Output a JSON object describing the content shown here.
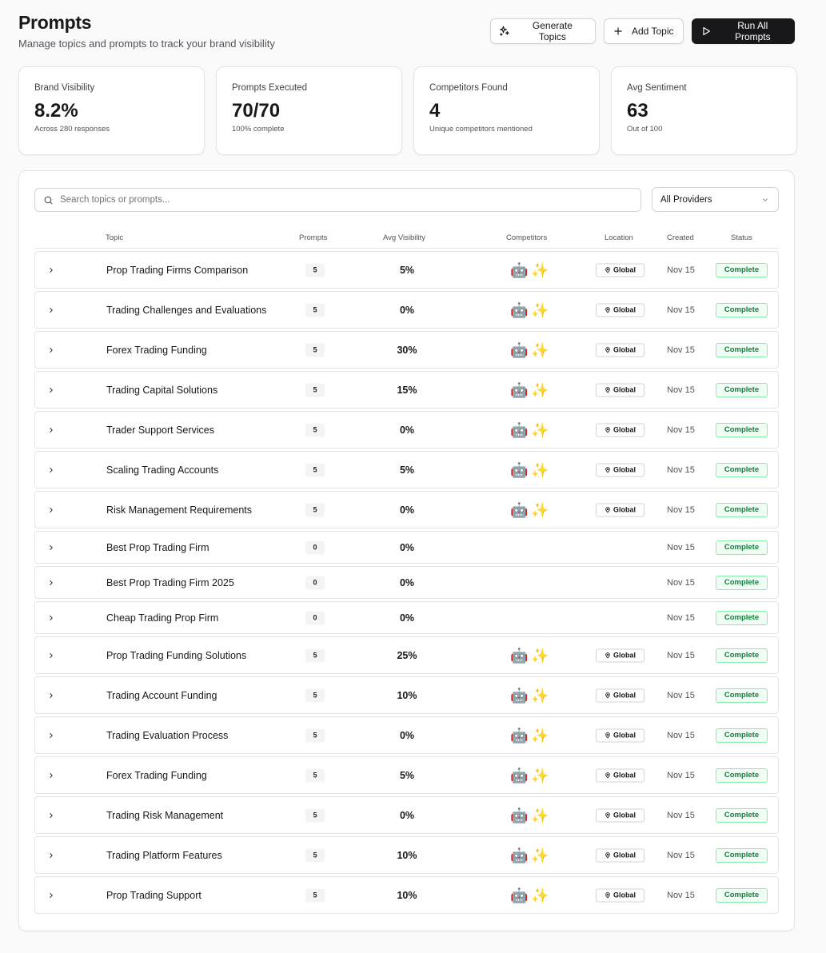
{
  "header": {
    "title": "Prompts",
    "subtitle": "Manage topics and prompts to track your brand visibility",
    "generate_label": "Generate Topics",
    "add_label": "Add Topic",
    "run_label": "Run All Prompts"
  },
  "stats": [
    {
      "label": "Brand Visibility",
      "value": "8.2%",
      "sub": "Across 280 responses"
    },
    {
      "label": "Prompts Executed",
      "value": "70/70",
      "sub": "100% complete"
    },
    {
      "label": "Competitors Found",
      "value": "4",
      "sub": "Unique competitors mentioned"
    },
    {
      "label": "Avg Sentiment",
      "value": "63",
      "sub": "Out of 100"
    }
  ],
  "search": {
    "placeholder": "Search topics or prompts..."
  },
  "provider_filter": {
    "value": "All Providers"
  },
  "columns": {
    "topic": "Topic",
    "prompts": "Prompts",
    "visibility": "Avg Visibility",
    "competitors": "Competitors",
    "location": "Location",
    "created": "Created",
    "status": "Status"
  },
  "competitor_icons": [
    "🤖",
    "✨"
  ],
  "rows": [
    {
      "topic": "Prop Trading Firms Comparison",
      "prompts": "5",
      "visibility": "5%",
      "has_comp": true,
      "location": "Global",
      "created": "Nov 15",
      "status": "Complete"
    },
    {
      "topic": "Trading Challenges and Evaluations",
      "prompts": "5",
      "visibility": "0%",
      "has_comp": true,
      "location": "Global",
      "created": "Nov 15",
      "status": "Complete"
    },
    {
      "topic": "Forex Trading Funding",
      "prompts": "5",
      "visibility": "30%",
      "has_comp": true,
      "location": "Global",
      "created": "Nov 15",
      "status": "Complete"
    },
    {
      "topic": "Trading Capital Solutions",
      "prompts": "5",
      "visibility": "15%",
      "has_comp": true,
      "location": "Global",
      "created": "Nov 15",
      "status": "Complete"
    },
    {
      "topic": "Trader Support Services",
      "prompts": "5",
      "visibility": "0%",
      "has_comp": true,
      "location": "Global",
      "created": "Nov 15",
      "status": "Complete"
    },
    {
      "topic": "Scaling Trading Accounts",
      "prompts": "5",
      "visibility": "5%",
      "has_comp": true,
      "location": "Global",
      "created": "Nov 15",
      "status": "Complete"
    },
    {
      "topic": "Risk Management Requirements",
      "prompts": "5",
      "visibility": "0%",
      "has_comp": true,
      "location": "Global",
      "created": "Nov 15",
      "status": "Complete"
    },
    {
      "topic": "Best Prop Trading Firm",
      "prompts": "0",
      "visibility": "0%",
      "has_comp": false,
      "location": "",
      "created": "Nov 15",
      "status": "Complete"
    },
    {
      "topic": "Best Prop Trading Firm 2025",
      "prompts": "0",
      "visibility": "0%",
      "has_comp": false,
      "location": "",
      "created": "Nov 15",
      "status": "Complete"
    },
    {
      "topic": "Cheap Trading Prop Firm",
      "prompts": "0",
      "visibility": "0%",
      "has_comp": false,
      "location": "",
      "created": "Nov 15",
      "status": "Complete"
    },
    {
      "topic": "Prop Trading Funding Solutions",
      "prompts": "5",
      "visibility": "25%",
      "has_comp": true,
      "location": "Global",
      "created": "Nov 15",
      "status": "Complete"
    },
    {
      "topic": "Trading Account Funding",
      "prompts": "5",
      "visibility": "10%",
      "has_comp": true,
      "location": "Global",
      "created": "Nov 15",
      "status": "Complete"
    },
    {
      "topic": "Trading Evaluation Process",
      "prompts": "5",
      "visibility": "0%",
      "has_comp": true,
      "location": "Global",
      "created": "Nov 15",
      "status": "Complete"
    },
    {
      "topic": "Forex Trading Funding",
      "prompts": "5",
      "visibility": "5%",
      "has_comp": true,
      "location": "Global",
      "created": "Nov 15",
      "status": "Complete"
    },
    {
      "topic": "Trading Risk Management",
      "prompts": "5",
      "visibility": "0%",
      "has_comp": true,
      "location": "Global",
      "created": "Nov 15",
      "status": "Complete"
    },
    {
      "topic": "Trading Platform Features",
      "prompts": "5",
      "visibility": "10%",
      "has_comp": true,
      "location": "Global",
      "created": "Nov 15",
      "status": "Complete"
    },
    {
      "topic": "Prop Trading Support",
      "prompts": "5",
      "visibility": "10%",
      "has_comp": true,
      "location": "Global",
      "created": "Nov 15",
      "status": "Complete"
    }
  ]
}
